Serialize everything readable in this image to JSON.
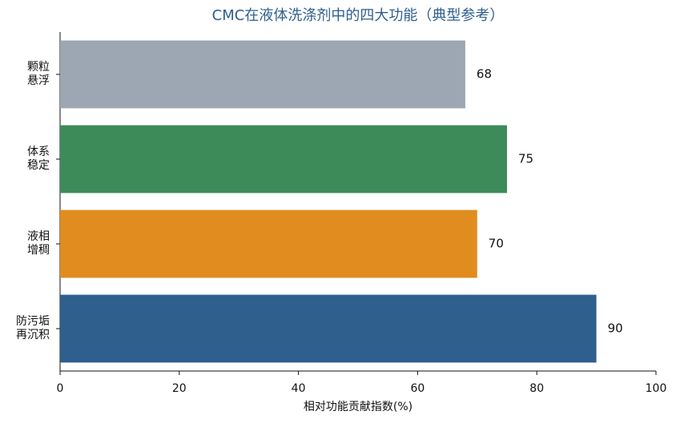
{
  "chart_data": {
    "type": "barh",
    "title": "CMC在液体洗涤剂中的四大功能（典型参考）",
    "x_label": "相对功能贡献指数(%)",
    "categories": [
      "颗粒\n悬浮",
      "体系\n稳定",
      "液相\n增稠",
      "防污垢\n再沉积"
    ],
    "values": [
      68,
      75,
      70,
      90
    ],
    "colors": [
      "#9ca7b3",
      "#3d8b59",
      "#e08c1e",
      "#2e5f8d"
    ],
    "xlim": [
      0,
      100
    ],
    "xticks": [
      0,
      20,
      40,
      60,
      80,
      100
    ],
    "grid": false
  }
}
